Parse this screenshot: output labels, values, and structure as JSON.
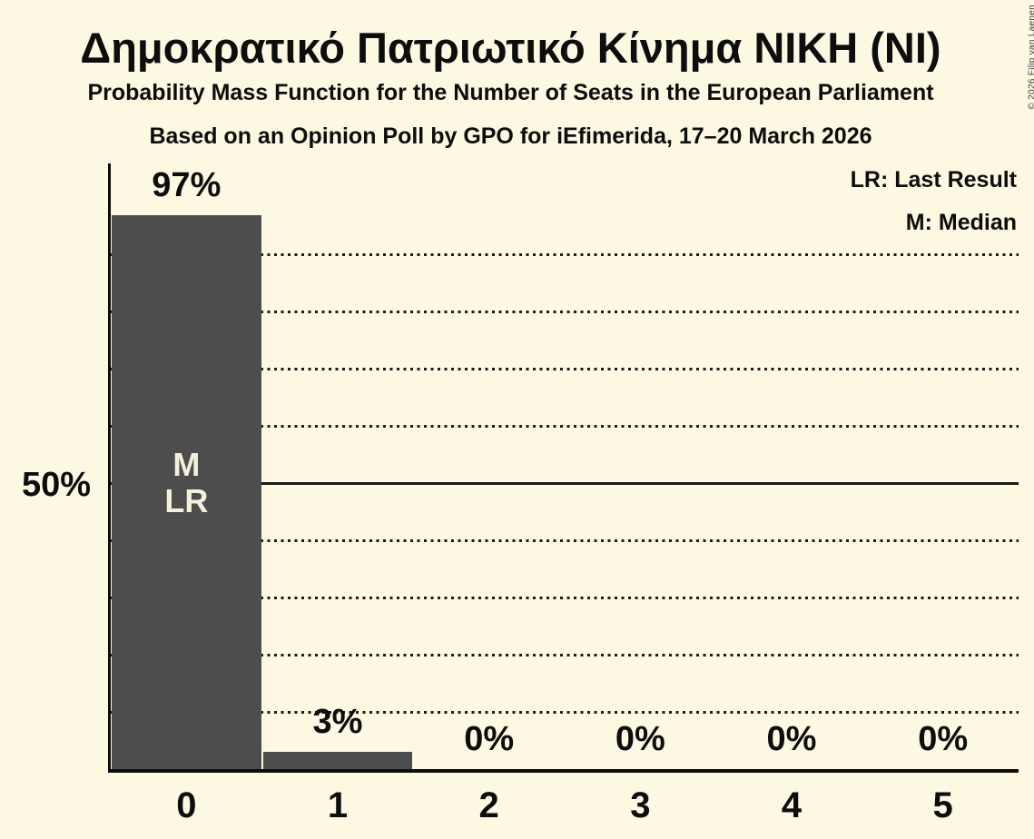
{
  "chart_data": {
    "type": "bar",
    "title": "Δημοκρατικό Πατριωτικό Κίνημα ΝΙΚΗ (ΝΙ)",
    "subtitle": "Probability Mass Function for the Number of Seats in the European Parliament",
    "source_line": "Based on an Opinion Poll by GPO for iEfimerida, 17–20 March 2026",
    "categories": [
      "0",
      "1",
      "2",
      "3",
      "4",
      "5"
    ],
    "values": [
      97,
      3,
      0,
      0,
      0,
      0
    ],
    "value_labels": [
      "97%",
      "3%",
      "0%",
      "0%",
      "0%",
      "0%"
    ],
    "xlabel": "",
    "ylabel": "",
    "ylim": [
      0,
      106
    ],
    "grid": "horizontal",
    "ytick": {
      "value": 50,
      "label": "50%"
    },
    "gridlines": {
      "dotted_pct": [
        10,
        20,
        30,
        40,
        60,
        70,
        80,
        90
      ],
      "solid_pct": 50
    },
    "legend_position": "top-right",
    "legend": {
      "line1": "LR: Last Result",
      "line2": "M: Median"
    },
    "bar_annotations": [
      {
        "category_index": 0,
        "lines": [
          "M",
          "LR"
        ],
        "at_pct": 50
      }
    ]
  },
  "copyright": "© 2026 Filip van Laenen",
  "colors": {
    "background": "#FDF8E2",
    "bar": "#4D4D4D",
    "text": "#0D0D0D",
    "bar_annotation_text": "#F5F0DC",
    "gridline": "#1A1A1A",
    "copyright_text": "#3C3C3C"
  }
}
